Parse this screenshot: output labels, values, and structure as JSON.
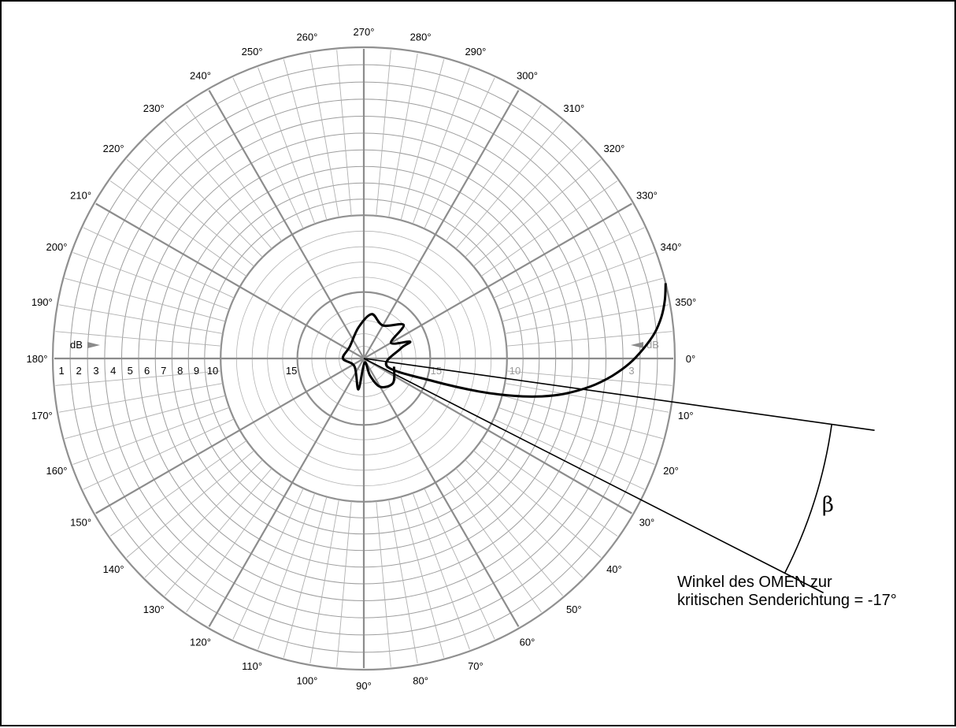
{
  "chart_data": {
    "type": "polar",
    "angle_labels": [
      "0°",
      "10°",
      "20°",
      "30°",
      "40°",
      "50°",
      "60°",
      "70°",
      "80°",
      "90°",
      "100°",
      "110°",
      "120°",
      "130°",
      "140°",
      "150°",
      "160°",
      "170°",
      "180°",
      "190°",
      "200°",
      "210°",
      "220°",
      "230°",
      "240°",
      "250°",
      "260°",
      "270°",
      "280°",
      "290°",
      "300°",
      "310°",
      "320°",
      "330°",
      "340°",
      "350°"
    ],
    "radial_unit_label": "dB",
    "radial_tick_labels_left": [
      "1",
      "2",
      "3",
      "4",
      "5",
      "6",
      "7",
      "8",
      "9",
      "10",
      "15"
    ],
    "radial_tick_labels_right": [
      "3",
      "10",
      "15"
    ],
    "radial_ticks_db": [
      0,
      1,
      2,
      3,
      4,
      5,
      6,
      7,
      8,
      9,
      10,
      15,
      20
    ],
    "angle_direction": "clockwise",
    "series": [
      {
        "theta_deg": [
          -14,
          -11,
          -8,
          -5,
          -2,
          1,
          4,
          7,
          10,
          12,
          14,
          16,
          18,
          19,
          -15,
          -20,
          -30,
          -40,
          -60,
          -80,
          -100,
          -140,
          -180,
          -220,
          -260,
          -280,
          -290,
          -300,
          -320,
          -345
        ],
        "db": [
          0,
          0.25,
          0.6,
          1.1,
          1.8,
          2.6,
          3.6,
          4.8,
          6.3,
          7.6,
          9.3,
          11.5,
          14.5,
          18,
          17,
          16.2,
          17.5,
          16,
          17,
          16.5,
          17.5,
          18.5,
          18.3,
          19,
          17.5,
          19.7,
          18.5,
          17.4,
          17,
          17.5
        ]
      }
    ],
    "annotations": {
      "line_angles_deg": [
        8,
        27
      ],
      "angle_symbol": "β",
      "note_lines": [
        "Winkel des OMEN zur",
        "kritischen Senderichtung = -17°"
      ]
    }
  }
}
